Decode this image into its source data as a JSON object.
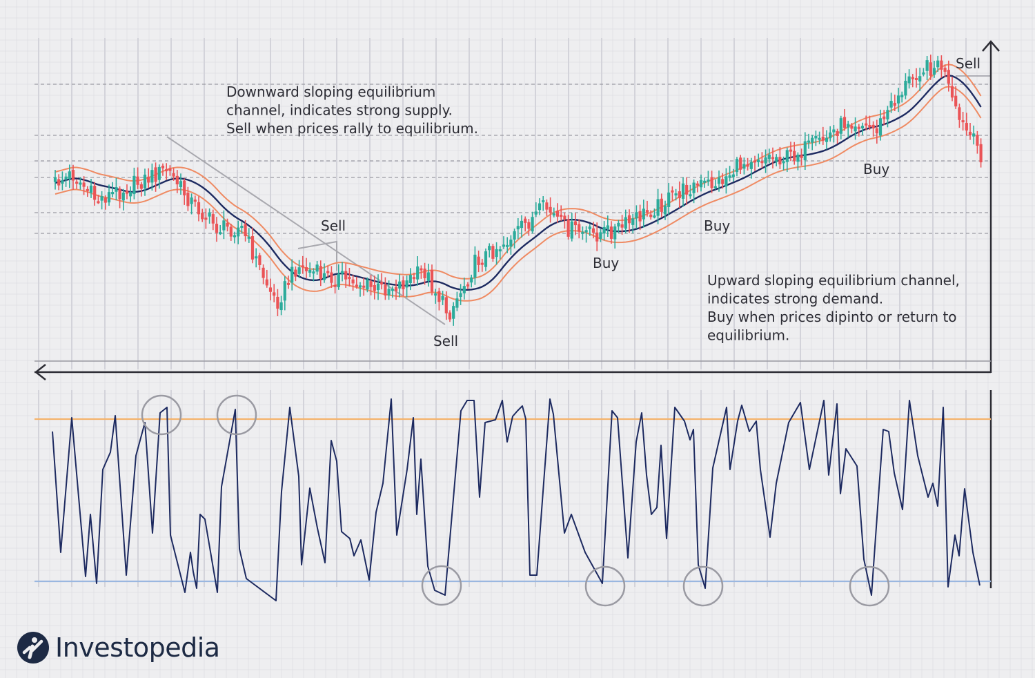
{
  "chart_data": [
    {
      "type": "candlestick",
      "description_series": [
        "price candles",
        "equilibrium middle line",
        "upper channel band",
        "lower channel band"
      ],
      "colors": {
        "bullish": "#2cab9b",
        "bearish": "#ea5457",
        "midline": "#1d2a60",
        "bands": "#ef8a62",
        "trendline": "#a8a8ae"
      },
      "annotations": [
        {
          "text": "Downward sloping equilibrium\nchannel, indicates strong supply.\nSell when prices rally to equilibrium."
        },
        {
          "text": "Upward sloping equilibrium channel,\nindicates strong demand.\nBuy when prices dipinto or return to\nequilibrium."
        }
      ],
      "signals": [
        {
          "label": "Sell",
          "position": "pullback"
        },
        {
          "label": "Sell",
          "position": "channel-low"
        },
        {
          "label": "Buy",
          "position": "first-dip"
        },
        {
          "label": "Buy",
          "position": "second-dip"
        },
        {
          "label": "Buy",
          "position": "third-dip"
        },
        {
          "label": "Sell",
          "position": "top"
        }
      ],
      "grid": true
    },
    {
      "type": "line",
      "series": [
        {
          "values": []
        }
      ],
      "reference_lines": [
        {
          "level": "overbought",
          "color": "#f5b36b"
        },
        {
          "level": "oversold",
          "color": "#9ab7e0"
        }
      ],
      "highlighted_extremes": [
        "overbought",
        "overbought",
        "oversold",
        "oversold",
        "oversold",
        "oversold"
      ],
      "grid": true
    }
  ],
  "brand": {
    "name": "Investopedia"
  }
}
